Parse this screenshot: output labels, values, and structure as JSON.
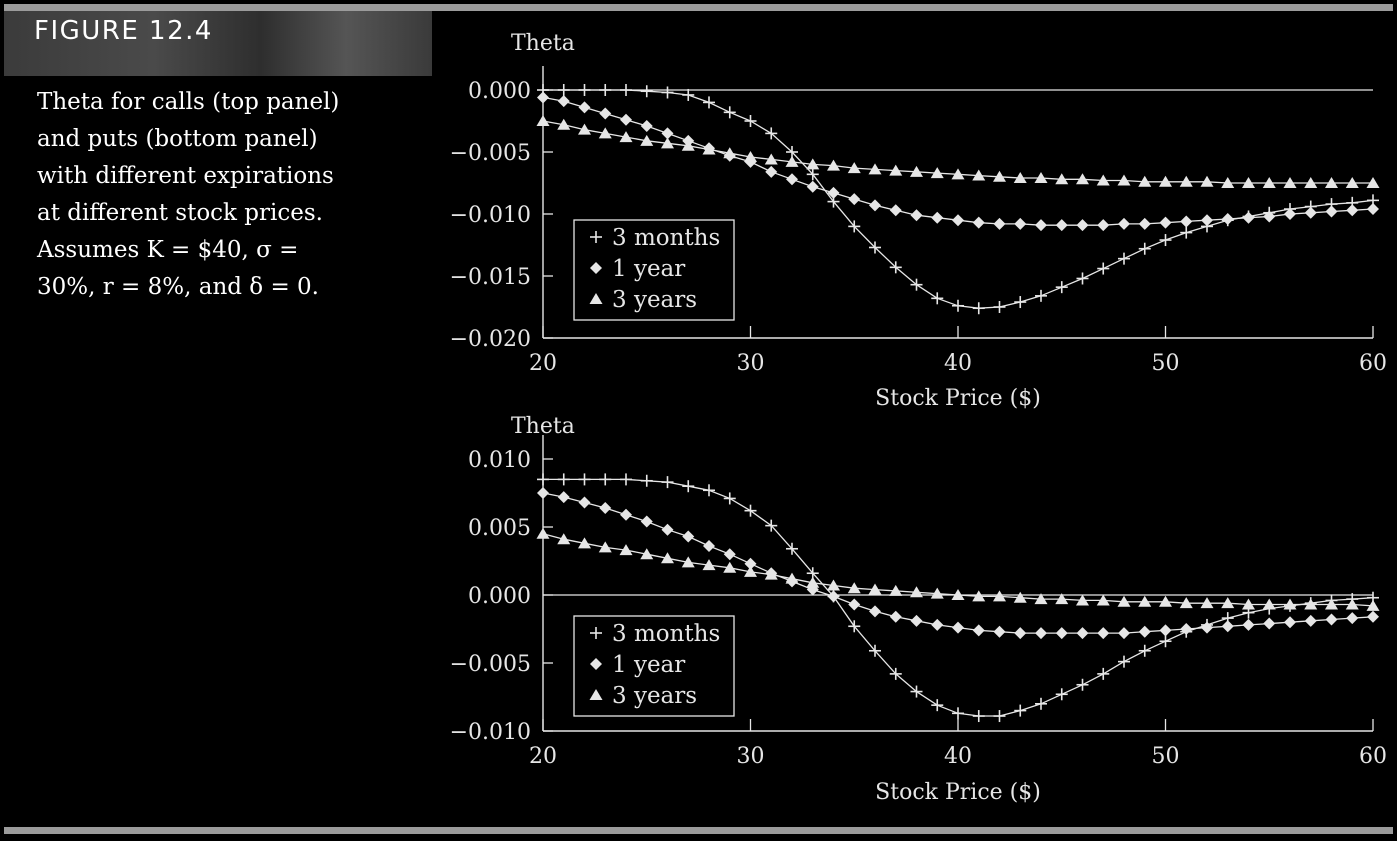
{
  "figure": {
    "label": "FIGURE 12.4",
    "caption_lines": [
      "Theta for calls (top panel)",
      "and puts (bottom panel)",
      "with different expirations",
      "at different stock prices.",
      "Assumes K = $40, σ =",
      "30%, r = 8%, and δ = 0."
    ]
  },
  "colors": {
    "background": "#000000",
    "ink": "#e6e6e6",
    "rule": "#9b9b9b"
  },
  "chart_data": [
    {
      "type": "line",
      "title": "",
      "ylabel": "Theta",
      "xlabel": "Stock Price ($)",
      "xlim": [
        20,
        60
      ],
      "ylim": [
        -0.02,
        0.0
      ],
      "xticks": [
        20,
        30,
        40,
        50,
        60
      ],
      "yticks": [
        0.0,
        -0.005,
        -0.01,
        -0.015,
        -0.02
      ],
      "ytick_labels": [
        "0.000",
        "−0.005",
        "−0.010",
        "−0.015",
        "−0.020"
      ],
      "legend_position": "bottom-left",
      "x": [
        20,
        21,
        22,
        23,
        24,
        25,
        26,
        27,
        28,
        29,
        30,
        31,
        32,
        33,
        34,
        35,
        36,
        37,
        38,
        39,
        40,
        41,
        42,
        43,
        44,
        45,
        46,
        47,
        48,
        49,
        50,
        51,
        52,
        53,
        54,
        55,
        56,
        57,
        58,
        59,
        60
      ],
      "series": [
        {
          "name": "3 months",
          "marker": "plus",
          "values": [
            0.0,
            0.0,
            0.0,
            0.0,
            0.0,
            -0.0001,
            -0.0002,
            -0.0004,
            -0.001,
            -0.0018,
            -0.0025,
            -0.0035,
            -0.005,
            -0.0068,
            -0.009,
            -0.011,
            -0.0127,
            -0.0143,
            -0.0157,
            -0.0168,
            -0.0174,
            -0.0176,
            -0.0175,
            -0.0171,
            -0.0166,
            -0.0159,
            -0.0152,
            -0.0144,
            -0.0136,
            -0.0128,
            -0.0121,
            -0.0115,
            -0.011,
            -0.0105,
            -0.0102,
            -0.0099,
            -0.0096,
            -0.0094,
            -0.0092,
            -0.0091,
            -0.0089
          ]
        },
        {
          "name": "1 year",
          "marker": "diamond",
          "values": [
            -0.0006,
            -0.0009,
            -0.0014,
            -0.0019,
            -0.0024,
            -0.0029,
            -0.0035,
            -0.0041,
            -0.0047,
            -0.0053,
            -0.0058,
            -0.0066,
            -0.0072,
            -0.0078,
            -0.0083,
            -0.0088,
            -0.0093,
            -0.0097,
            -0.0101,
            -0.0103,
            -0.0105,
            -0.0107,
            -0.0108,
            -0.0108,
            -0.0109,
            -0.0109,
            -0.0109,
            -0.0109,
            -0.0108,
            -0.0108,
            -0.0107,
            -0.0106,
            -0.0105,
            -0.0104,
            -0.0103,
            -0.0102,
            -0.01,
            -0.0099,
            -0.0098,
            -0.0097,
            -0.0096
          ]
        },
        {
          "name": "3 years",
          "marker": "triangle",
          "values": [
            -0.0025,
            -0.0028,
            -0.0032,
            -0.0035,
            -0.0038,
            -0.0041,
            -0.0043,
            -0.0045,
            -0.0048,
            -0.0051,
            -0.0054,
            -0.0056,
            -0.0058,
            -0.006,
            -0.0061,
            -0.0063,
            -0.0064,
            -0.0065,
            -0.0066,
            -0.0067,
            -0.0068,
            -0.0069,
            -0.007,
            -0.0071,
            -0.0071,
            -0.0072,
            -0.0072,
            -0.0073,
            -0.0073,
            -0.0074,
            -0.0074,
            -0.0074,
            -0.0074,
            -0.0075,
            -0.0075,
            -0.0075,
            -0.0075,
            -0.0075,
            -0.0075,
            -0.0075,
            -0.0075
          ]
        }
      ]
    },
    {
      "type": "line",
      "title": "",
      "ylabel": "Theta",
      "xlabel": "Stock Price ($)",
      "xlim": [
        20,
        60
      ],
      "ylim": [
        -0.01,
        0.01
      ],
      "xticks": [
        20,
        30,
        40,
        50,
        60
      ],
      "yticks": [
        0.01,
        0.005,
        0.0,
        -0.005,
        -0.01
      ],
      "ytick_labels": [
        "0.010",
        "0.005",
        "0.000",
        "−0.005",
        "−0.010"
      ],
      "legend_position": "bottom-left",
      "x": [
        20,
        21,
        22,
        23,
        24,
        25,
        26,
        27,
        28,
        29,
        30,
        31,
        32,
        33,
        34,
        35,
        36,
        37,
        38,
        39,
        40,
        41,
        42,
        43,
        44,
        45,
        46,
        47,
        48,
        49,
        50,
        51,
        52,
        53,
        54,
        55,
        56,
        57,
        58,
        59,
        60
      ],
      "series": [
        {
          "name": "3 months",
          "marker": "plus",
          "values": [
            0.0085,
            0.0085,
            0.0085,
            0.0085,
            0.0085,
            0.0084,
            0.0083,
            0.008,
            0.0077,
            0.0071,
            0.0062,
            0.0051,
            0.0034,
            0.0016,
            -0.0001,
            -0.0023,
            -0.0041,
            -0.0058,
            -0.0071,
            -0.0081,
            -0.0087,
            -0.0089,
            -0.0089,
            -0.0085,
            -0.008,
            -0.0073,
            -0.0066,
            -0.0058,
            -0.0049,
            -0.0041,
            -0.0034,
            -0.0027,
            -0.0022,
            -0.0017,
            -0.0013,
            -0.001,
            -0.0008,
            -0.0006,
            -0.0004,
            -0.0003,
            -0.0002
          ]
        },
        {
          "name": "1 year",
          "marker": "diamond",
          "values": [
            0.0075,
            0.0072,
            0.0068,
            0.0064,
            0.0059,
            0.0054,
            0.0048,
            0.0043,
            0.0036,
            0.003,
            0.0023,
            0.0016,
            0.001,
            0.0004,
            -0.0001,
            -0.0007,
            -0.0012,
            -0.0016,
            -0.0019,
            -0.0022,
            -0.0024,
            -0.0026,
            -0.0027,
            -0.0028,
            -0.0028,
            -0.0028,
            -0.0028,
            -0.0028,
            -0.0028,
            -0.0027,
            -0.0026,
            -0.0025,
            -0.0024,
            -0.0023,
            -0.0022,
            -0.0021,
            -0.002,
            -0.0019,
            -0.0018,
            -0.0017,
            -0.0016
          ]
        },
        {
          "name": "3 years",
          "marker": "triangle",
          "values": [
            0.0045,
            0.0041,
            0.0038,
            0.0035,
            0.0033,
            0.003,
            0.0027,
            0.0024,
            0.0022,
            0.002,
            0.0017,
            0.0015,
            0.0012,
            0.0009,
            0.0007,
            0.0005,
            0.0004,
            0.0003,
            0.0002,
            0.0001,
            0.0,
            -0.0001,
            -0.0001,
            -0.0002,
            -0.0003,
            -0.0003,
            -0.0004,
            -0.0004,
            -0.0005,
            -0.0005,
            -0.0005,
            -0.0006,
            -0.0006,
            -0.0006,
            -0.0007,
            -0.0007,
            -0.0007,
            -0.0007,
            -0.0007,
            -0.0007,
            -0.0008
          ]
        }
      ]
    }
  ]
}
